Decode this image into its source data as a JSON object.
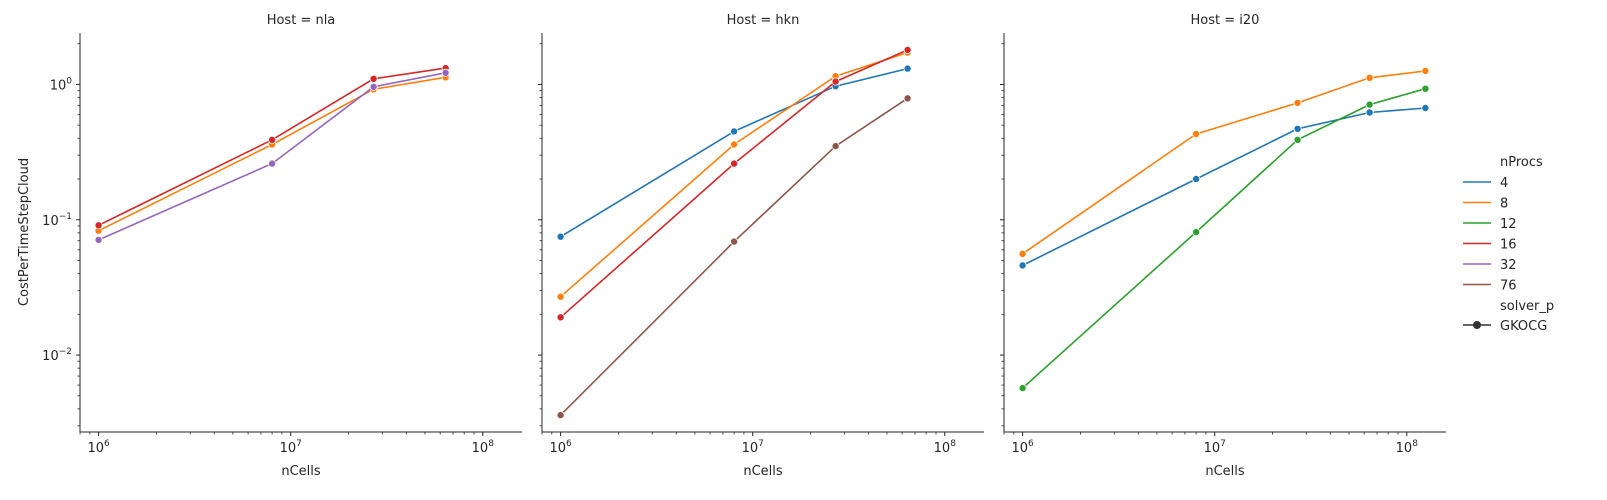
{
  "figure": {
    "ylabel": "CostPerTimeStepCloud"
  },
  "legend": {
    "hue_title": "nProcs",
    "style_title": "solver_p",
    "style_entries": [
      "GKOCG"
    ]
  },
  "series_colors": {
    "4": "#1f77b4",
    "8": "#ff7f0e",
    "12": "#2ca02c",
    "16": "#d62728",
    "32": "#9467bd",
    "76": "#8c564b"
  },
  "chart_data": [
    {
      "type": "line",
      "title": "Host = nla",
      "xlabel": "nCells",
      "ylabel": "CostPerTimeStepCloud",
      "xscale": "log",
      "yscale": "log",
      "xlim": [
        800000,
        160000000
      ],
      "ylim": [
        0.0027,
        2.4
      ],
      "x_ticks": [
        "10^6",
        "10^7",
        "10^8"
      ],
      "y_ticks": [
        "10^-2",
        "10^-1",
        "10^0"
      ],
      "grid": false,
      "series": [
        {
          "name": "8",
          "x": [
            1000000,
            8000000,
            27000000,
            64000000
          ],
          "y": [
            0.083,
            0.36,
            0.92,
            1.13
          ]
        },
        {
          "name": "16",
          "x": [
            1000000,
            8000000,
            27000000,
            64000000
          ],
          "y": [
            0.091,
            0.39,
            1.1,
            1.32
          ]
        },
        {
          "name": "32",
          "x": [
            1000000,
            8000000,
            27000000,
            64000000
          ],
          "y": [
            0.071,
            0.26,
            0.96,
            1.22
          ]
        }
      ]
    },
    {
      "type": "line",
      "title": "Host = hkn",
      "xlabel": "nCells",
      "ylabel": "",
      "xscale": "log",
      "yscale": "log",
      "xlim": [
        800000,
        160000000
      ],
      "ylim": [
        0.0027,
        2.4
      ],
      "x_ticks": [
        "10^6",
        "10^7",
        "10^8"
      ],
      "grid": false,
      "series": [
        {
          "name": "4",
          "x": [
            1000000,
            8000000,
            27000000,
            64000000
          ],
          "y": [
            0.075,
            0.45,
            0.97,
            1.31
          ]
        },
        {
          "name": "8",
          "x": [
            1000000,
            8000000,
            27000000,
            64000000
          ],
          "y": [
            0.027,
            0.36,
            1.15,
            1.72
          ]
        },
        {
          "name": "16",
          "x": [
            1000000,
            8000000,
            27000000,
            64000000
          ],
          "y": [
            0.019,
            0.26,
            1.05,
            1.8
          ]
        },
        {
          "name": "76",
          "x": [
            1000000,
            8000000,
            27000000,
            64000000
          ],
          "y": [
            0.0036,
            0.069,
            0.35,
            0.79
          ]
        }
      ]
    },
    {
      "type": "line",
      "title": "Host = i20",
      "xlabel": "nCells",
      "ylabel": "",
      "xscale": "log",
      "yscale": "log",
      "xlim": [
        800000,
        160000000
      ],
      "ylim": [
        0.0027,
        2.4
      ],
      "x_ticks": [
        "10^6",
        "10^7",
        "10^8"
      ],
      "grid": false,
      "series": [
        {
          "name": "4",
          "x": [
            1000000,
            8000000,
            27000000,
            64000000,
            125000000
          ],
          "y": [
            0.046,
            0.2,
            0.47,
            0.62,
            0.67
          ]
        },
        {
          "name": "8",
          "x": [
            1000000,
            8000000,
            27000000,
            64000000,
            125000000
          ],
          "y": [
            0.056,
            0.43,
            0.73,
            1.12,
            1.26
          ]
        },
        {
          "name": "12",
          "x": [
            1000000,
            8000000,
            27000000,
            64000000,
            125000000
          ],
          "y": [
            0.0057,
            0.081,
            0.39,
            0.71,
            0.93
          ]
        }
      ]
    }
  ]
}
